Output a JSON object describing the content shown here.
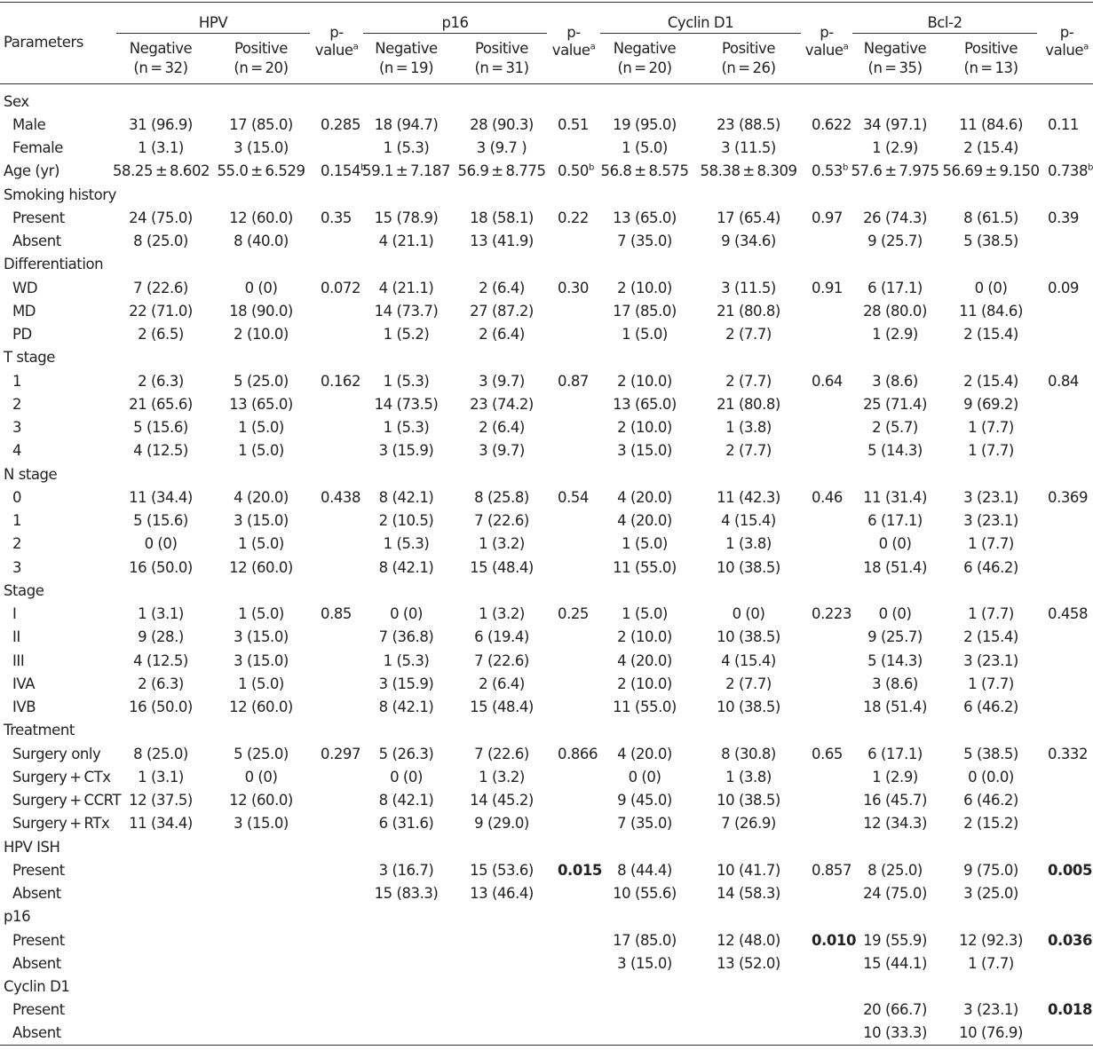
{
  "header": {
    "parameters": "Parameters",
    "groups": [
      "HPV",
      "p16",
      "Cyclin D1",
      "Bcl-2"
    ],
    "pvalue_top": "p-",
    "pvalue_bottom": "value",
    "pvalue_sup": "a",
    "subheaders": [
      [
        "Negative",
        "(n = 32)",
        "Positive",
        "(n = 20)"
      ],
      [
        "Negative",
        "(n = 19)",
        "Positive",
        "(n = 31)"
      ],
      [
        "Negative",
        "(n = 20)",
        "Positive",
        "(n = 26)"
      ],
      [
        "Negative",
        "(n = 35)",
        "Positive",
        "(n = 13)"
      ]
    ]
  },
  "rows": [
    {
      "label": "Sex",
      "sub": false,
      "cells": [
        "",
        "",
        "",
        "",
        "",
        "",
        "",
        "",
        "",
        "",
        "",
        ""
      ]
    },
    {
      "label": "Male",
      "sub": true,
      "cells": [
        "31 (96.9)",
        "17 (85.0)",
        "0.285",
        "18 (94.7)",
        "28 (90.3)",
        "0.51",
        "19 (95.0)",
        "23 (88.5)",
        "0.622",
        "34 (97.1)",
        "11 (84.6)",
        "0.11"
      ]
    },
    {
      "label": "Female",
      "sub": true,
      "cells": [
        "1 (3.1)",
        "3 (15.0)",
        "",
        "1 (5.3)",
        "3 (9.7 )",
        "",
        "1 (5.0)",
        "3 (11.5)",
        "",
        "1 (2.9)",
        "2 (15.4)",
        ""
      ]
    },
    {
      "label": "Age (yr)",
      "sub": false,
      "cells": [
        "58.25 ± 8.602",
        "55.0 ± 6.529",
        "0.154|b",
        "59.1 ± 7.187",
        "56.9 ± 8.775",
        "0.50|b",
        "56.8 ± 8.575",
        "58.38 ± 8.309",
        "0.53|b",
        "57.6 ± 7.975",
        "56.69 ± 9.150",
        "0.738|b"
      ]
    },
    {
      "label": "Smoking history",
      "sub": false,
      "cells": [
        "",
        "",
        "",
        "",
        "",
        "",
        "",
        "",
        "",
        "",
        "",
        ""
      ]
    },
    {
      "label": "Present",
      "sub": true,
      "cells": [
        "24 (75.0)",
        "12 (60.0)",
        "0.35",
        "15 (78.9)",
        "18 (58.1)",
        "0.22",
        "13 (65.0)",
        "17 (65.4)",
        "0.97",
        "26 (74.3)",
        "8 (61.5)",
        "0.39"
      ]
    },
    {
      "label": "Absent",
      "sub": true,
      "cells": [
        "8 (25.0)",
        "8 (40.0)",
        "",
        "4 (21.1)",
        "13 (41.9)",
        "",
        "7 (35.0)",
        "9 (34.6)",
        "",
        "9 (25.7)",
        "5 (38.5)",
        ""
      ]
    },
    {
      "label": "Differentiation",
      "sub": false,
      "cells": [
        "",
        "",
        "",
        "",
        "",
        "",
        "",
        "",
        "",
        "",
        "",
        ""
      ]
    },
    {
      "label": "WD",
      "sub": true,
      "cells": [
        "7 (22.6)",
        "0 (0)",
        "0.072",
        "4 (21.1)",
        "2 (6.4)",
        "0.30",
        "2 (10.0)",
        "3 (11.5)",
        "0.91",
        "6 (17.1)",
        "0 (0)",
        "0.09"
      ]
    },
    {
      "label": "MD",
      "sub": true,
      "cells": [
        "22 (71.0)",
        "18 (90.0)",
        "",
        "14 (73.7)",
        "27 (87.2)",
        "",
        "17 (85.0)",
        "21 (80.8)",
        "",
        "28 (80.0)",
        "11 (84.6)",
        ""
      ]
    },
    {
      "label": "PD",
      "sub": true,
      "cells": [
        "2 (6.5)",
        "2 (10.0)",
        "",
        "1 (5.2)",
        "2 (6.4)",
        "",
        "1 (5.0)",
        "2 (7.7)",
        "",
        "1 (2.9)",
        "2 (15.4)",
        ""
      ]
    },
    {
      "label": "T stage",
      "sub": false,
      "cells": [
        "",
        "",
        "",
        "",
        "",
        "",
        "",
        "",
        "",
        "",
        "",
        ""
      ]
    },
    {
      "label": "1",
      "sub": true,
      "cells": [
        "2 (6.3)",
        "5 (25.0)",
        "0.162",
        "1 (5.3)",
        "3 (9.7)",
        "0.87",
        "2 (10.0)",
        "2 (7.7)",
        "0.64",
        "3 (8.6)",
        "2 (15.4)",
        "0.84"
      ]
    },
    {
      "label": "2",
      "sub": true,
      "cells": [
        "21 (65.6)",
        "13 (65.0)",
        "",
        "14 (73.5)",
        "23 (74.2)",
        "",
        "13 (65.0)",
        "21 (80.8)",
        "",
        "25 (71.4)",
        "9 (69.2)",
        ""
      ]
    },
    {
      "label": "3",
      "sub": true,
      "cells": [
        "5 (15.6)",
        "1 (5.0)",
        "",
        "1 (5.3)",
        "2 (6.4)",
        "",
        "2 (10.0)",
        "1 (3.8)",
        "",
        "2 (5.7)",
        "1 (7.7)",
        ""
      ]
    },
    {
      "label": "4",
      "sub": true,
      "cells": [
        "4 (12.5)",
        "1 (5.0)",
        "",
        "3 (15.9)",
        "3 (9.7)",
        "",
        "3 (15.0)",
        "2 (7.7)",
        "",
        "5 (14.3)",
        "1 (7.7)",
        ""
      ]
    },
    {
      "label": "N stage",
      "sub": false,
      "cells": [
        "",
        "",
        "",
        "",
        "",
        "",
        "",
        "",
        "",
        "",
        "",
        ""
      ]
    },
    {
      "label": "0",
      "sub": true,
      "cells": [
        "11 (34.4)",
        "4 (20.0)",
        "0.438",
        "8 (42.1)",
        "8 (25.8)",
        "0.54",
        "4 (20.0)",
        "11 (42.3)",
        "0.46",
        "11 (31.4)",
        "3 (23.1)",
        "0.369"
      ]
    },
    {
      "label": "1",
      "sub": true,
      "cells": [
        "5 (15.6)",
        "3 (15.0)",
        "",
        "2 (10.5)",
        "7 (22.6)",
        "",
        "4 (20.0)",
        "4 (15.4)",
        "",
        "6 (17.1)",
        "3 (23.1)",
        ""
      ]
    },
    {
      "label": "2",
      "sub": true,
      "cells": [
        "0 (0)",
        "1 (5.0)",
        "",
        "1 (5.3)",
        "1 (3.2)",
        "",
        "1 (5.0)",
        "1 (3.8)",
        "",
        "0 (0)",
        "1 (7.7)",
        ""
      ]
    },
    {
      "label": "3",
      "sub": true,
      "cells": [
        "16 (50.0)",
        "12 (60.0)",
        "",
        "8 (42.1)",
        "15 (48.4)",
        "",
        "11 (55.0)",
        "10 (38.5)",
        "",
        "18 (51.4)",
        "6 (46.2)",
        ""
      ]
    },
    {
      "label": "Stage",
      "sub": false,
      "cells": [
        "",
        "",
        "",
        "",
        "",
        "",
        "",
        "",
        "",
        "",
        "",
        ""
      ]
    },
    {
      "label": "I",
      "sub": true,
      "cells": [
        "1 (3.1)",
        "1 (5.0)",
        "0.85",
        "0 (0)",
        "1 (3.2)",
        "0.25",
        "1 (5.0)",
        "0 (0)",
        "0.223",
        "0 (0)",
        "1 (7.7)",
        "0.458"
      ]
    },
    {
      "label": "II",
      "sub": true,
      "cells": [
        "9 (28.)",
        "3 (15.0)",
        "",
        "7 (36.8)",
        "6 (19.4)",
        "",
        "2 (10.0)",
        "10 (38.5)",
        "",
        "9 (25.7)",
        "2 (15.4)",
        ""
      ]
    },
    {
      "label": "III",
      "sub": true,
      "cells": [
        "4 (12.5)",
        "3 (15.0)",
        "",
        "1 (5.3)",
        "7 (22.6)",
        "",
        "4 (20.0)",
        "4 (15.4)",
        "",
        "5 (14.3)",
        "3 (23.1)",
        ""
      ]
    },
    {
      "label": "IVA",
      "sub": true,
      "cells": [
        "2 (6.3)",
        "1 (5.0)",
        "",
        "3 (15.9)",
        "2 (6.4)",
        "",
        "2 (10.0)",
        "2 (7.7)",
        "",
        "3 (8.6)",
        "1 (7.7)",
        ""
      ]
    },
    {
      "label": "IVB",
      "sub": true,
      "cells": [
        "16 (50.0)",
        "12 (60.0)",
        "",
        "8 (42.1)",
        "15 (48.4)",
        "",
        "11 (55.0)",
        "10 (38.5)",
        "",
        "18 (51.4)",
        "6 (46.2)",
        ""
      ]
    },
    {
      "label": "Treatment",
      "sub": false,
      "cells": [
        "",
        "",
        "",
        "",
        "",
        "",
        "",
        "",
        "",
        "",
        "",
        ""
      ]
    },
    {
      "label": "Surgery only",
      "sub": true,
      "cells": [
        "8 (25.0)",
        "5 (25.0)",
        "0.297",
        "5 (26.3)",
        "7 (22.6)",
        "0.866",
        "4 (20.0)",
        "8 (30.8)",
        "0.65",
        "6 (17.1)",
        "5 (38.5)",
        "0.332"
      ]
    },
    {
      "label": "Surgery + CTx",
      "sub": true,
      "cells": [
        "1 (3.1)",
        "0 (0)",
        "",
        "0 (0)",
        "1 (3.2)",
        "",
        "0 (0)",
        "1 (3.8)",
        "",
        "1 (2.9)",
        "0 (0.0)",
        ""
      ]
    },
    {
      "label": "Surgery + CCRT",
      "sub": true,
      "cells": [
        "12 (37.5)",
        "12 (60.0)",
        "",
        "8 (42.1)",
        "14 (45.2)",
        "",
        "9 (45.0)",
        "10 (38.5)",
        "",
        "16 (45.7)",
        "6 (46.2)",
        ""
      ]
    },
    {
      "label": "Surgery + RTx",
      "sub": true,
      "cells": [
        "11 (34.4)",
        "3 (15.0)",
        "",
        "6 (31.6)",
        "9 (29.0)",
        "",
        "7 (35.0)",
        "7 (26.9)",
        "",
        "12 (34.3)",
        "2 (15.2)",
        ""
      ]
    },
    {
      "label": "HPV ISH",
      "sub": false,
      "cells": [
        "",
        "",
        "",
        "",
        "",
        "",
        "",
        "",
        "",
        "",
        "",
        ""
      ]
    },
    {
      "label": "Present",
      "sub": true,
      "cells": [
        "",
        "",
        "",
        "3 (16.7)",
        "15 (53.6)",
        "0.015",
        "8 (44.4)",
        "10 (41.7)",
        "0.857",
        "8 (25.0)",
        "9 (75.0)",
        "0.005"
      ],
      "bold_p": [
        5,
        11
      ]
    },
    {
      "label": "Absent",
      "sub": true,
      "cells": [
        "",
        "",
        "",
        "15 (83.3)",
        "13 (46.4)",
        "",
        "10 (55.6)",
        "14 (58.3)",
        "",
        "24 (75.0)",
        "3 (25.0)",
        ""
      ]
    },
    {
      "label": "p16",
      "sub": false,
      "cells": [
        "",
        "",
        "",
        "",
        "",
        "",
        "",
        "",
        "",
        "",
        "",
        ""
      ]
    },
    {
      "label": "Present",
      "sub": true,
      "cells": [
        "",
        "",
        "",
        "",
        "",
        "",
        "17 (85.0)",
        "12 (48.0)",
        "0.010",
        "19 (55.9)",
        "12 (92.3)",
        "0.036"
      ],
      "bold_p": [
        8,
        11
      ]
    },
    {
      "label": "Absent",
      "sub": true,
      "cells": [
        "",
        "",
        "",
        "",
        "",
        "",
        "3 (15.0)",
        "13 (52.0)",
        "",
        "15 (44.1)",
        "1 (7.7)",
        ""
      ]
    },
    {
      "label": "Cyclin D1",
      "sub": false,
      "cells": [
        "",
        "",
        "",
        "",
        "",
        "",
        "",
        "",
        "",
        "",
        "",
        ""
      ]
    },
    {
      "label": "Present",
      "sub": true,
      "cells": [
        "",
        "",
        "",
        "",
        "",
        "",
        "",
        "",
        "",
        "20 (66.7)",
        "3 (23.1)",
        "0.018"
      ],
      "bold_p": [
        11
      ]
    },
    {
      "label": "Absent",
      "sub": true,
      "cells": [
        "",
        "",
        "",
        "",
        "",
        "",
        "",
        "",
        "",
        "10 (33.3)",
        "10 (76.9)",
        ""
      ]
    }
  ]
}
